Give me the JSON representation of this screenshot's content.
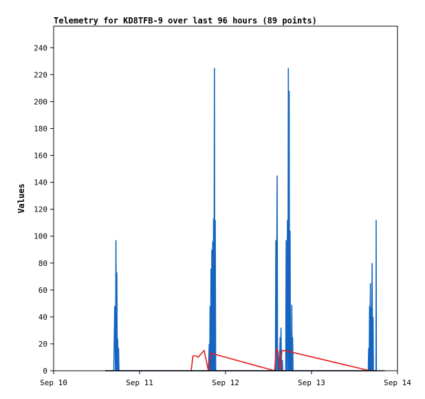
{
  "chart_data": {
    "type": "line",
    "title": "Telemetry for KD8TFB-9 over last 96 hours (89 points)",
    "xlabel": "",
    "ylabel": "Values",
    "x_ticks": [
      "Sep 10",
      "Sep 11",
      "Sep 12",
      "Sep 13",
      "Sep 14"
    ],
    "x_range": [
      "Sep 10",
      "Sep 14"
    ],
    "ylim": [
      0,
      256
    ],
    "y_ticks": [
      0,
      20,
      40,
      60,
      80,
      100,
      120,
      140,
      160,
      180,
      200,
      220,
      240
    ],
    "grid": false,
    "colors": {
      "series_blue": "#1565c0",
      "series_red": "#e41a1c",
      "series_black": "#000000",
      "axis": "#000000"
    },
    "series": [
      {
        "color": "#1565c0",
        "points": [
          [
            0.6,
            0
          ],
          [
            0.7,
            0
          ],
          [
            0.71,
            48
          ],
          [
            0.72,
            0
          ],
          [
            0.725,
            97
          ],
          [
            0.73,
            0
          ],
          [
            0.735,
            73
          ],
          [
            0.74,
            0
          ],
          [
            0.745,
            24
          ],
          [
            0.75,
            0
          ],
          [
            0.755,
            17
          ],
          [
            0.76,
            0
          ],
          [
            0.8,
            0
          ],
          [
            1.8,
            0
          ],
          [
            1.81,
            20
          ],
          [
            1.815,
            0
          ],
          [
            1.82,
            48
          ],
          [
            1.825,
            0
          ],
          [
            1.83,
            76
          ],
          [
            1.835,
            0
          ],
          [
            1.84,
            90
          ],
          [
            1.845,
            0
          ],
          [
            1.85,
            96
          ],
          [
            1.855,
            0
          ],
          [
            1.86,
            113
          ],
          [
            1.865,
            0
          ],
          [
            1.87,
            225
          ],
          [
            1.875,
            0
          ],
          [
            1.88,
            112
          ],
          [
            1.885,
            0
          ],
          [
            1.9,
            0
          ],
          [
            2.58,
            0
          ],
          [
            2.585,
            97
          ],
          [
            2.59,
            0
          ],
          [
            2.6,
            145
          ],
          [
            2.605,
            0
          ],
          [
            2.61,
            15
          ],
          [
            2.615,
            0
          ],
          [
            2.62,
            7
          ],
          [
            2.625,
            0
          ],
          [
            2.635,
            25
          ],
          [
            2.64,
            0
          ],
          [
            2.645,
            32
          ],
          [
            2.65,
            0
          ],
          [
            2.66,
            8
          ],
          [
            2.665,
            0
          ],
          [
            2.69,
            0
          ],
          [
            2.7,
            0
          ],
          [
            2.705,
            97
          ],
          [
            2.71,
            0
          ],
          [
            2.72,
            112
          ],
          [
            2.725,
            0
          ],
          [
            2.73,
            225
          ],
          [
            2.735,
            0
          ],
          [
            2.74,
            208
          ],
          [
            2.745,
            0
          ],
          [
            2.75,
            104
          ],
          [
            2.755,
            0
          ],
          [
            2.76,
            24
          ],
          [
            2.765,
            0
          ],
          [
            2.77,
            49
          ],
          [
            2.775,
            0
          ],
          [
            2.78,
            25
          ],
          [
            2.785,
            0
          ],
          [
            2.8,
            0
          ],
          [
            3.66,
            0
          ],
          [
            3.665,
            17
          ],
          [
            3.67,
            0
          ],
          [
            3.675,
            48
          ],
          [
            3.68,
            0
          ],
          [
            3.685,
            65
          ],
          [
            3.69,
            0
          ],
          [
            3.695,
            47
          ],
          [
            3.7,
            0
          ],
          [
            3.705,
            80
          ],
          [
            3.71,
            0
          ],
          [
            3.715,
            40
          ],
          [
            3.72,
            0
          ],
          [
            3.74,
            0
          ],
          [
            3.75,
            0
          ],
          [
            3.752,
            112
          ],
          [
            3.754,
            0
          ]
        ]
      },
      {
        "color": "#e41a1c",
        "points": [
          [
            1.6,
            0
          ],
          [
            1.62,
            11
          ],
          [
            1.66,
            11
          ],
          [
            1.68,
            10
          ],
          [
            1.75,
            15
          ],
          [
            1.8,
            0
          ],
          [
            1.83,
            13
          ],
          [
            2.57,
            0
          ],
          [
            2.59,
            16
          ],
          [
            2.61,
            14
          ],
          [
            2.625,
            3
          ],
          [
            2.64,
            0
          ],
          [
            2.655,
            15
          ],
          [
            2.69,
            15
          ],
          [
            3.68,
            0
          ]
        ]
      },
      {
        "color": "#000000",
        "points": [
          [
            0.6,
            0
          ],
          [
            3.85,
            0
          ]
        ]
      }
    ]
  }
}
